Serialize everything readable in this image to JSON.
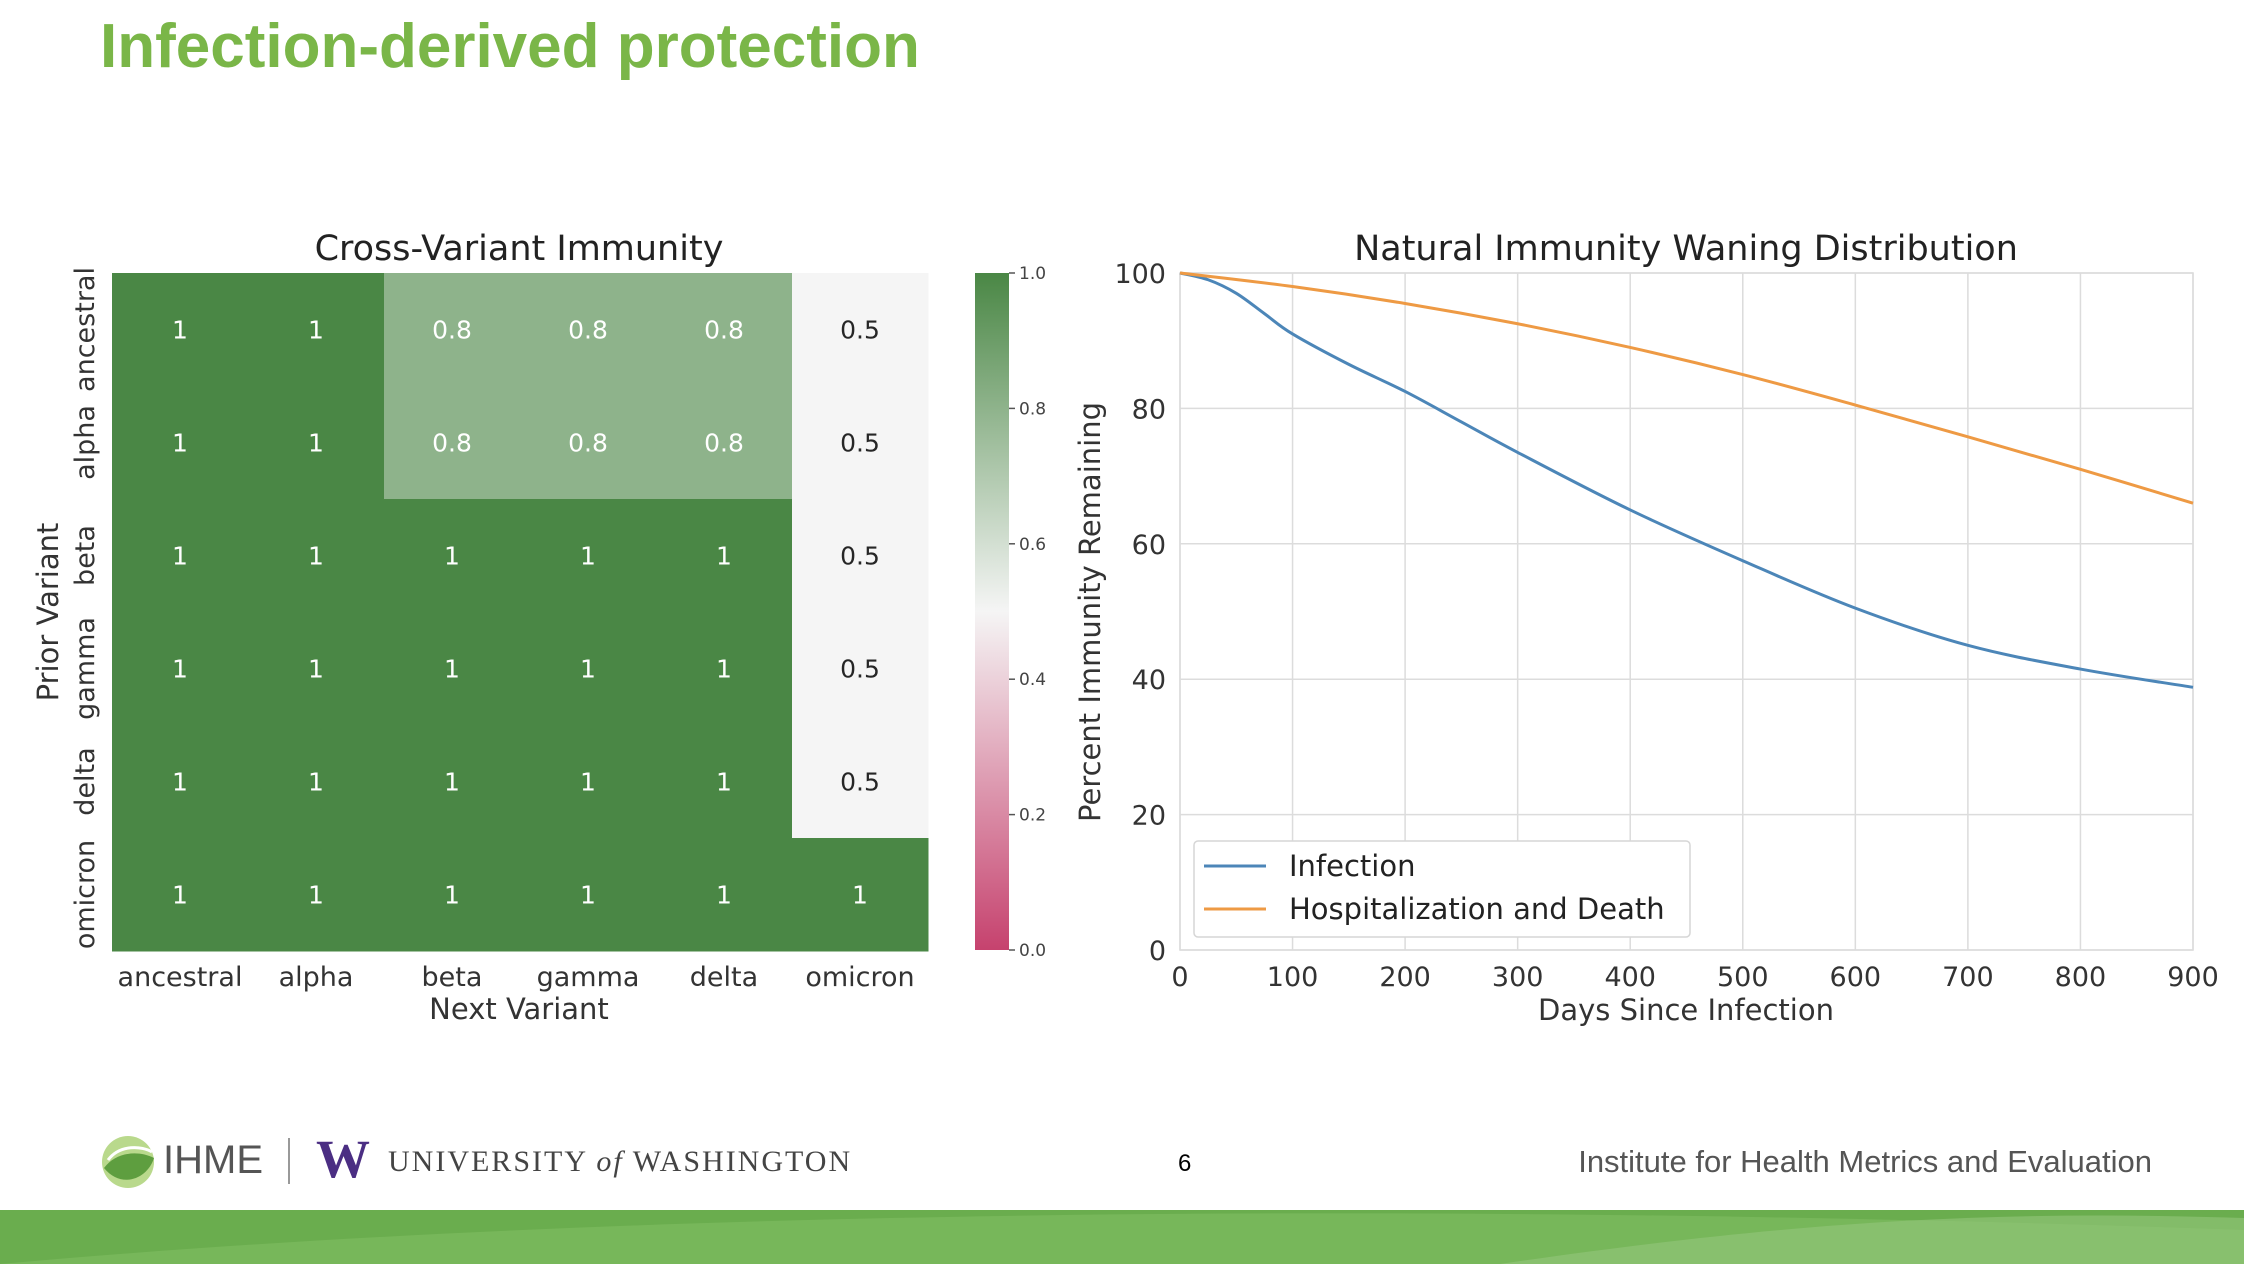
{
  "slide": {
    "title": "Infection-derived protection",
    "page_number": "6",
    "footer": {
      "ihme": "IHME",
      "uw_university": "UNIVERSITY",
      "uw_of": "of",
      "uw_washington": "WASHINGTON",
      "institute": "Institute for Health Metrics and Evaluation"
    },
    "colors": {
      "title": "#7ab648",
      "band": "#6aad4e"
    }
  },
  "chart_data": [
    {
      "type": "heatmap",
      "title": "Cross-Variant Immunity",
      "xlabel": "Next Variant",
      "ylabel": "Prior Variant",
      "x_categories": [
        "ancestral",
        "alpha",
        "beta",
        "gamma",
        "delta",
        "omicron"
      ],
      "y_categories": [
        "ancestral",
        "alpha",
        "beta",
        "gamma",
        "delta",
        "omicron"
      ],
      "values": [
        [
          1,
          1,
          0.8,
          0.8,
          0.8,
          0.5
        ],
        [
          1,
          1,
          0.8,
          0.8,
          0.8,
          0.5
        ],
        [
          1,
          1,
          1,
          1,
          1,
          0.5
        ],
        [
          1,
          1,
          1,
          1,
          1,
          0.5
        ],
        [
          1,
          1,
          1,
          1,
          1,
          0.5
        ],
        [
          1,
          1,
          1,
          1,
          1,
          1
        ]
      ],
      "colorbar": {
        "range": [
          0,
          1
        ],
        "ticks": [
          "0.0",
          "0.2",
          "0.4",
          "0.6",
          "0.8",
          "1.0"
        ],
        "colors": [
          "#c6426e",
          "#f5f5f5",
          "#4a8745"
        ]
      }
    },
    {
      "type": "line",
      "title": "Natural Immunity Waning Distribution",
      "xlabel": "Days Since Infection",
      "ylabel": "Percent Immunity Remaining",
      "xlim": [
        0,
        900
      ],
      "ylim": [
        0,
        100
      ],
      "xticks": [
        0,
        100,
        200,
        300,
        400,
        500,
        600,
        700,
        800,
        900
      ],
      "yticks": [
        0,
        20,
        40,
        60,
        80,
        100
      ],
      "grid": true,
      "legend_position": "bottom-left",
      "series": [
        {
          "name": "Infection",
          "color": "#4c86b8",
          "x": [
            0,
            25,
            50,
            75,
            100,
            150,
            200,
            250,
            300,
            400,
            500,
            600,
            700,
            800,
            900
          ],
          "y": [
            100,
            99,
            97,
            94,
            91,
            86.5,
            82.5,
            78,
            73.5,
            65,
            57.5,
            50.5,
            45,
            41.5,
            38.8
          ]
        },
        {
          "name": "Hospitalization and Death",
          "color": "#ee9a44",
          "x": [
            0,
            100,
            200,
            300,
            400,
            500,
            600,
            700,
            800,
            900
          ],
          "y": [
            100,
            98,
            95.5,
            92.5,
            89,
            85,
            80.5,
            75.8,
            71,
            66
          ]
        }
      ]
    }
  ]
}
